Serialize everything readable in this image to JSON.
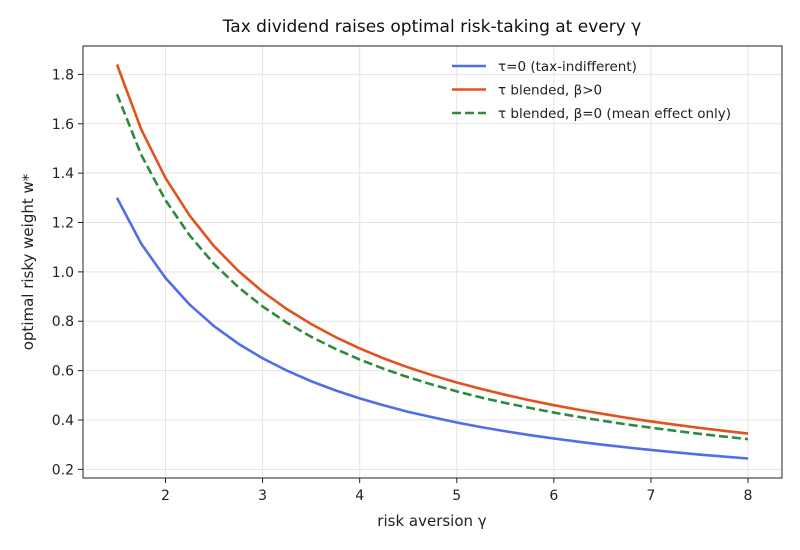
{
  "chart_data": {
    "type": "line",
    "title": "Tax dividend raises optimal risk-taking at every γ",
    "xlabel": "risk aversion  γ",
    "ylabel": "optimal risky weight  w*",
    "xlim": [
      1.15,
      8.35
    ],
    "ylim": [
      0.165,
      1.915
    ],
    "xticks": [
      2,
      3,
      4,
      5,
      6,
      7,
      8
    ],
    "yticks": [
      0.2,
      0.4,
      0.6,
      0.8,
      1.0,
      1.2,
      1.4,
      1.6,
      1.8
    ],
    "grid": true,
    "legend_position": "top-right",
    "x": [
      1.5,
      1.75,
      2,
      2.25,
      2.5,
      2.75,
      3,
      3.25,
      3.5,
      3.75,
      4,
      4.25,
      4.5,
      4.75,
      5,
      5.25,
      5.5,
      5.75,
      6,
      6.25,
      6.5,
      6.75,
      7,
      7.25,
      7.5,
      7.75,
      8
    ],
    "series": [
      {
        "name": "τ=0 (tax-indifferent)",
        "color": "#4f6ee8",
        "dash": "solid",
        "values": [
          1.3,
          1.114,
          0.975,
          0.867,
          0.78,
          0.709,
          0.65,
          0.6,
          0.557,
          0.52,
          0.4875,
          0.459,
          0.433,
          0.411,
          0.39,
          0.371,
          0.3545,
          0.339,
          0.325,
          0.312,
          0.3,
          0.289,
          0.2785,
          0.269,
          0.26,
          0.252,
          0.244
        ]
      },
      {
        "name": "τ blended, β>0",
        "color": "#e0531c",
        "dash": "solid",
        "values": [
          1.84,
          1.577,
          1.38,
          1.227,
          1.104,
          1.004,
          0.92,
          0.849,
          0.789,
          0.736,
          0.69,
          0.649,
          0.613,
          0.581,
          0.552,
          0.526,
          0.502,
          0.48,
          0.46,
          0.442,
          0.425,
          0.409,
          0.394,
          0.381,
          0.368,
          0.356,
          0.345
        ]
      },
      {
        "name": "τ blended, β=0 (mean effect only)",
        "color": "#2e8b3d",
        "dash": "dashed",
        "values": [
          1.72,
          1.474,
          1.29,
          1.147,
          1.032,
          0.938,
          0.86,
          0.794,
          0.737,
          0.688,
          0.645,
          0.607,
          0.573,
          0.543,
          0.516,
          0.491,
          0.469,
          0.449,
          0.43,
          0.413,
          0.397,
          0.382,
          0.369,
          0.356,
          0.344,
          0.333,
          0.3225
        ]
      }
    ]
  }
}
